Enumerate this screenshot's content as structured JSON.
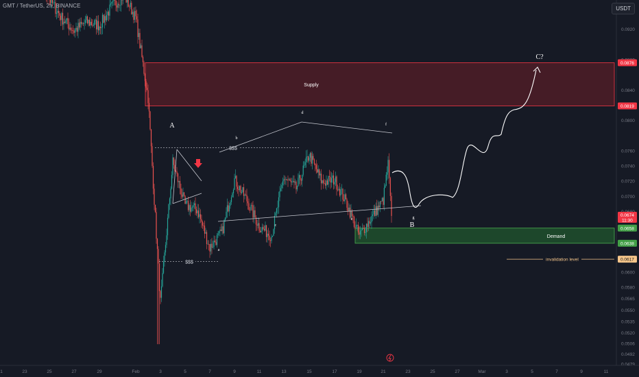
{
  "header": {
    "title": "GMT / TetherUS, 2h, BINANCE",
    "unit": "USDT"
  },
  "colors": {
    "background": "#161a25",
    "up": "#26a69a",
    "down": "#ef5350",
    "supply_fill": "#4a1d27",
    "supply_border": "#f23645",
    "demand_fill": "#1e4d2c",
    "demand_border": "#4caf50",
    "axis_text": "#787b86",
    "white": "#d1d4dc",
    "invalidation": "#f5c58a"
  },
  "chart_data": {
    "type": "candlestick",
    "title": "GMT / TetherUS, 2h, BINANCE",
    "y_range": [
      0.0478,
      0.0955
    ],
    "y_ticks": [
      "0.0920",
      "0.0880",
      "0.0840",
      "0.0800",
      "0.0760",
      "0.0740",
      "0.0720",
      "0.0700",
      "0.0680",
      "0.0600",
      "0.0580",
      "0.0565",
      "0.0550",
      "0.0535",
      "0.0520",
      "0.0506",
      "0.0492",
      "0.0479"
    ],
    "x_ticks": [
      "1",
      "23",
      "25",
      "27",
      "29",
      "Feb",
      "3",
      "5",
      "7",
      "9",
      "11",
      "13",
      "15",
      "17",
      "19",
      "21",
      "23",
      "25",
      "27",
      "Mar",
      "3",
      "5",
      "7",
      "9",
      "11"
    ],
    "price_labels": [
      {
        "value": "0.0876",
        "kind": "supply"
      },
      {
        "value": "0.0819",
        "kind": "supply"
      },
      {
        "value": "0.0658",
        "kind": "demand"
      },
      {
        "value": "0.0638",
        "kind": "demand"
      },
      {
        "value": "0.0617",
        "kind": "invalidation"
      }
    ],
    "last_price": {
      "value": "0.0674",
      "countdown": "11:30"
    },
    "zones": [
      {
        "label": "Supply",
        "top": 0.0876,
        "bottom": 0.0819
      },
      {
        "label": "Demand",
        "top": 0.0658,
        "bottom": 0.0638
      }
    ],
    "liquidity_labels": [
      {
        "text": "$$$",
        "price": 0.0764
      },
      {
        "text": "$$$",
        "price": 0.0614
      }
    ],
    "wave_labels": [
      "A",
      "a",
      "b",
      "c",
      "d",
      "e",
      "f",
      "g",
      "B",
      "C?"
    ],
    "invalidation_label": "invalidation level",
    "close_anchors": [
      {
        "date": "Jan 22",
        "price": 0.1003
      },
      {
        "date": "Jan 23",
        "price": 0.0985
      },
      {
        "date": "Jan 24",
        "price": 0.0992
      },
      {
        "date": "Jan 25",
        "price": 0.096
      },
      {
        "date": "Jan 26",
        "price": 0.0935
      },
      {
        "date": "Jan 27",
        "price": 0.0918
      },
      {
        "date": "Jan 28",
        "price": 0.093
      },
      {
        "date": "Jan 29",
        "price": 0.0925
      },
      {
        "date": "Jan 30",
        "price": 0.095
      },
      {
        "date": "Jan 31",
        "price": 0.0965
      },
      {
        "date": "Feb 1",
        "price": 0.0935
      },
      {
        "date": "Feb 2",
        "price": 0.083
      },
      {
        "date": "Feb 3",
        "price": 0.056
      },
      {
        "date": "Feb 4",
        "price": 0.0745
      },
      {
        "date": "Feb 5",
        "price": 0.0688
      },
      {
        "date": "Feb 6",
        "price": 0.0682
      },
      {
        "date": "Feb 7",
        "price": 0.0632
      },
      {
        "date": "Feb 8",
        "price": 0.0653
      },
      {
        "date": "Feb 9",
        "price": 0.0722
      },
      {
        "date": "Feb 10",
        "price": 0.0695
      },
      {
        "date": "Feb 11",
        "price": 0.066
      },
      {
        "date": "Feb 12",
        "price": 0.0648
      },
      {
        "date": "Feb 13",
        "price": 0.0725
      },
      {
        "date": "Feb 14",
        "price": 0.071
      },
      {
        "date": "Feb 15",
        "price": 0.0755
      },
      {
        "date": "Feb 16",
        "price": 0.0718
      },
      {
        "date": "Feb 17",
        "price": 0.0722
      },
      {
        "date": "Feb 18",
        "price": 0.069
      },
      {
        "date": "Feb 19",
        "price": 0.0648
      },
      {
        "date": "Feb 20",
        "price": 0.0672
      },
      {
        "date": "Feb 21",
        "price": 0.0695
      },
      {
        "date": "Feb 22",
        "price": 0.0742
      },
      {
        "date": "Feb 22 (last)",
        "price": 0.0674
      }
    ]
  }
}
